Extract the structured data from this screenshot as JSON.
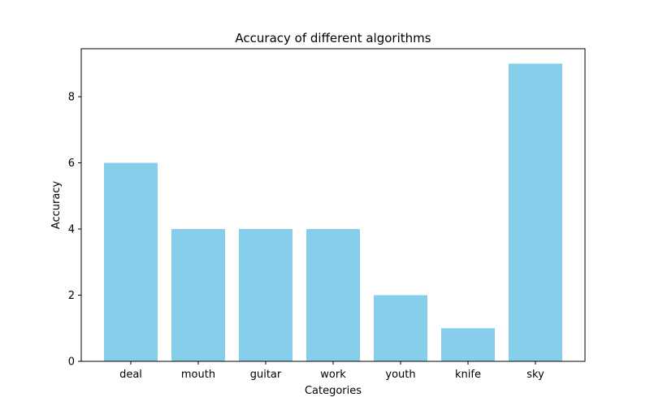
{
  "chart_data": {
    "type": "bar",
    "title": "Accuracy of different algorithms",
    "xlabel": "Categories",
    "ylabel": "Accuracy",
    "categories": [
      "deal",
      "mouth",
      "guitar",
      "work",
      "youth",
      "knife",
      "sky"
    ],
    "values": [
      6,
      4,
      4,
      4,
      2,
      1,
      9
    ],
    "ylim": [
      0,
      9.45
    ],
    "yticks": [
      0,
      2,
      4,
      6,
      8
    ],
    "grid": false,
    "legend": "none",
    "bar_color": "#87ceeb"
  }
}
